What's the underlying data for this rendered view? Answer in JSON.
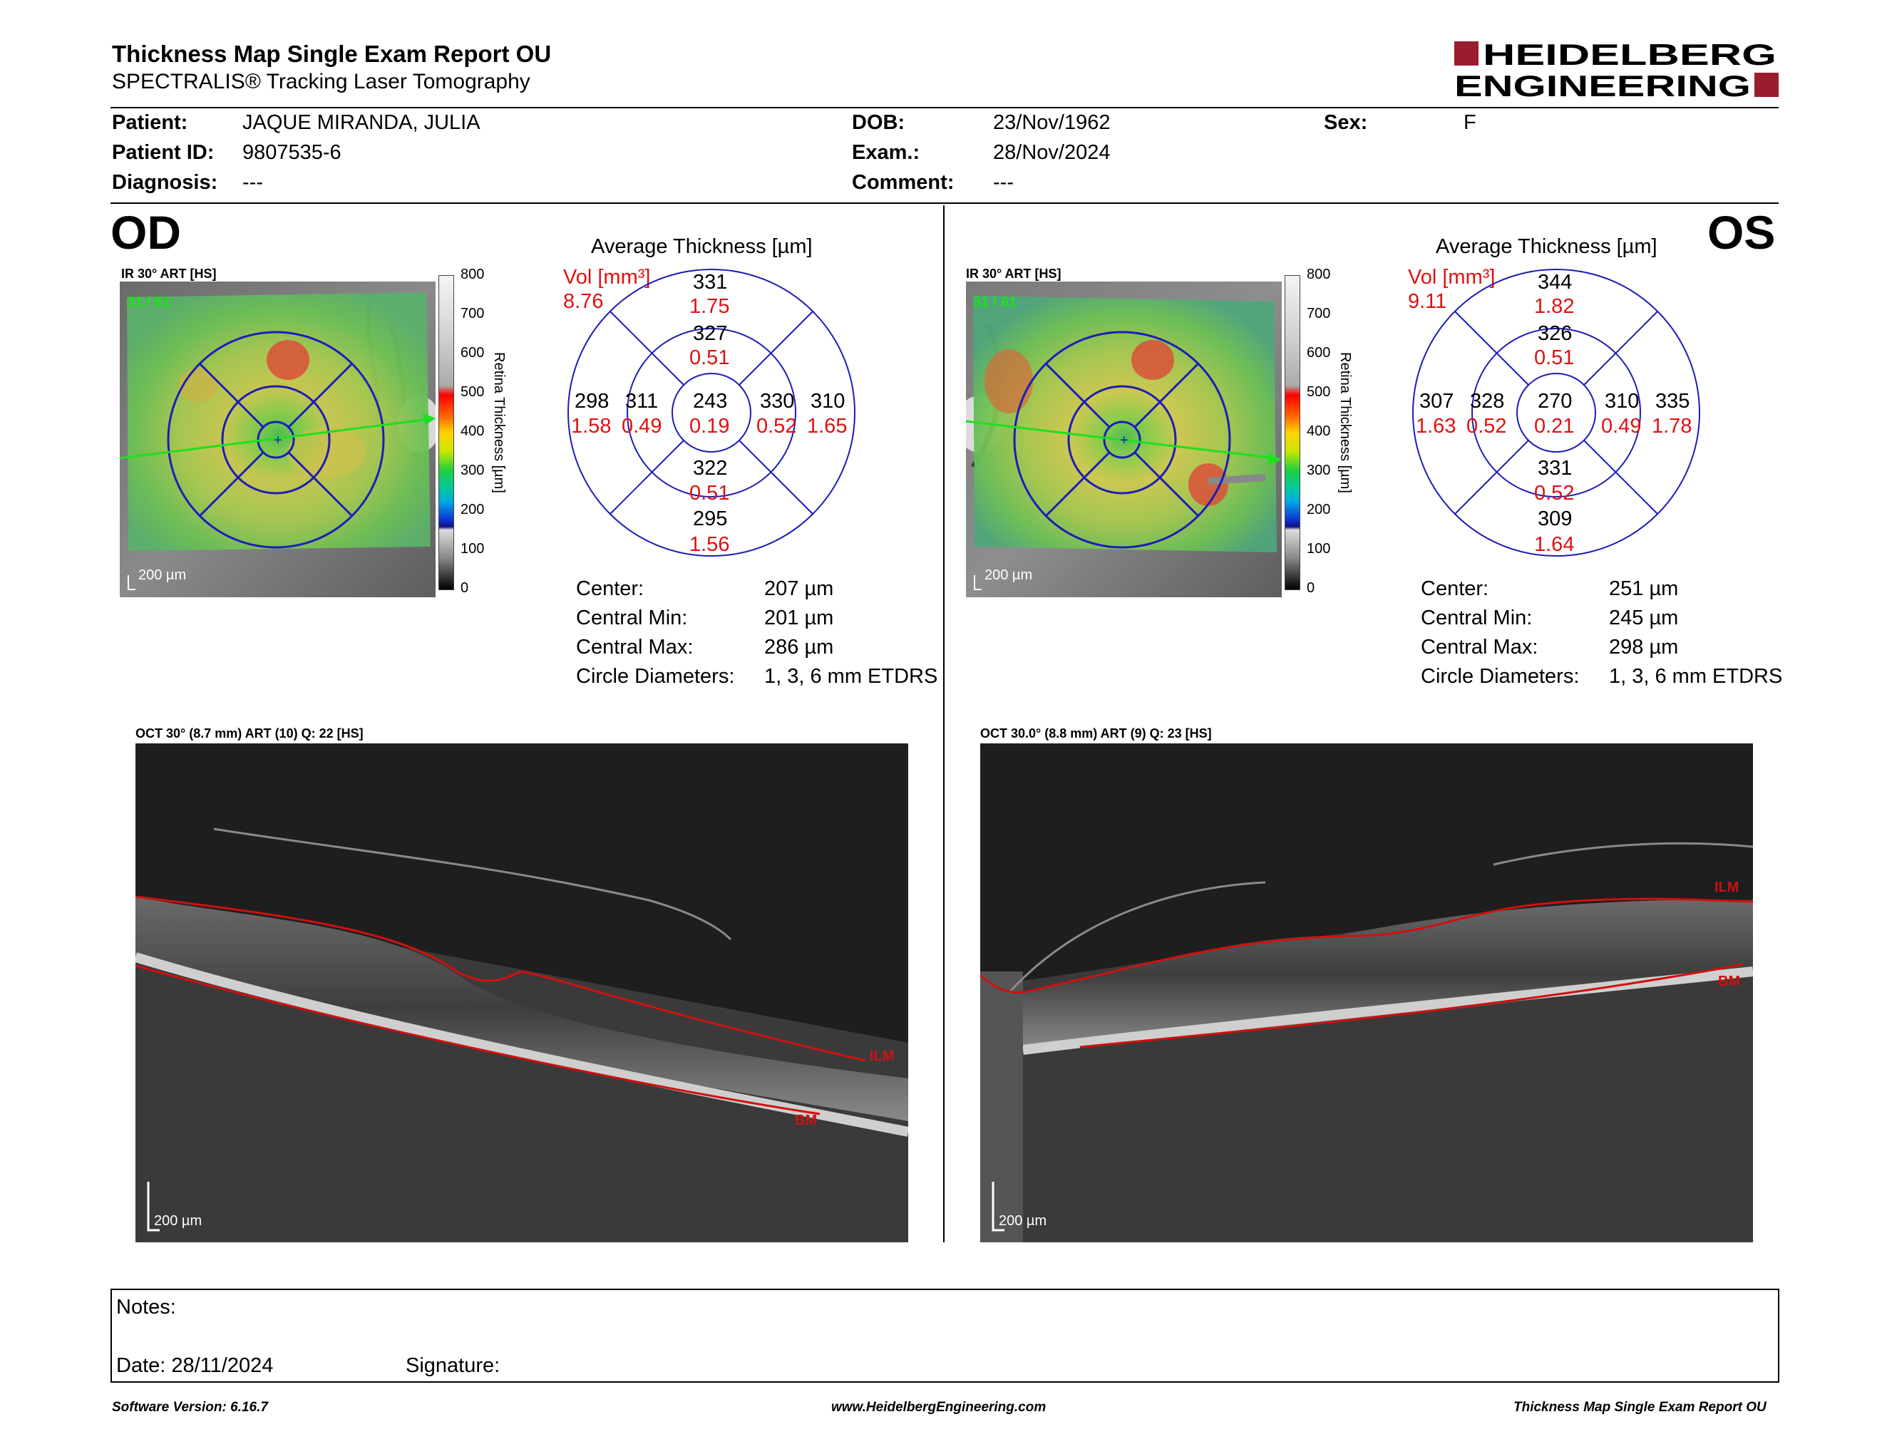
{
  "header": {
    "title": "Thickness Map Single Exam Report OU",
    "subtitle": "SPECTRALIS® Tracking Laser Tomography",
    "logo_line1": "HEIDELBERG",
    "logo_line2": "ENGINEERING"
  },
  "patient": {
    "patient_label": "Patient:",
    "patient_value": "JAQUE MIRANDA, JULIA",
    "id_label": "Patient ID:",
    "id_value": "9807535-6",
    "diag_label": "Diagnosis:",
    "diag_value": "---",
    "dob_label": "DOB:",
    "dob_value": "23/Nov/1962",
    "exam_label": "Exam.:",
    "exam_value": "28/Nov/2024",
    "comment_label": "Comment:",
    "comment_value": "---",
    "sex_label": "Sex:",
    "sex_value": "F"
  },
  "od": {
    "eye": "OD",
    "ir_label": "IR 30° ART [HS]",
    "ir_counter": "31 / 61",
    "ir_scale": "200 µm",
    "avg_title": "Average Thickness [µm]",
    "vol_label": "Vol [mm³]",
    "vol_value": "8.76",
    "grid": {
      "center_t": "243",
      "center_v": "0.19",
      "inner_sup_t": "327",
      "inner_sup_v": "0.51",
      "inner_inf_t": "322",
      "inner_inf_v": "0.51",
      "inner_left_t": "311",
      "inner_left_v": "0.49",
      "inner_right_t": "330",
      "inner_right_v": "0.52",
      "outer_sup_t": "331",
      "outer_sup_v": "1.75",
      "outer_inf_t": "295",
      "outer_inf_v": "1.56",
      "outer_left_t": "298",
      "outer_left_v": "1.58",
      "outer_right_t": "310",
      "outer_right_v": "1.65"
    },
    "stats": {
      "center_label": "Center:",
      "center_value": "207 µm",
      "min_label": "Central Min:",
      "min_value": "201 µm",
      "max_label": "Central Max:",
      "max_value": "286 µm",
      "circ_label": "Circle Diameters:",
      "circ_value": "1, 3, 6 mm ETDRS"
    },
    "oct_label": "OCT 30° (8.7 mm) ART (10) Q: 22 [HS]",
    "oct_scale": "200 µm",
    "ilm": "ILM",
    "bm": "BM"
  },
  "os": {
    "eye": "OS",
    "ir_label": "IR 30° ART [HS]",
    "ir_counter": "31 / 61",
    "ir_scale": "200 µm",
    "avg_title": "Average Thickness [µm]",
    "vol_label": "Vol [mm³]",
    "vol_value": "9.11",
    "grid": {
      "center_t": "270",
      "center_v": "0.21",
      "inner_sup_t": "326",
      "inner_sup_v": "0.51",
      "inner_inf_t": "331",
      "inner_inf_v": "0.52",
      "inner_left_t": "328",
      "inner_left_v": "0.52",
      "inner_right_t": "310",
      "inner_right_v": "0.49",
      "outer_sup_t": "344",
      "outer_sup_v": "1.82",
      "outer_inf_t": "309",
      "outer_inf_v": "1.64",
      "outer_left_t": "307",
      "outer_left_v": "1.63",
      "outer_right_t": "335",
      "outer_right_v": "1.78"
    },
    "stats": {
      "center_label": "Center:",
      "center_value": "251 µm",
      "min_label": "Central Min:",
      "min_value": "245 µm",
      "max_label": "Central Max:",
      "max_value": "298 µm",
      "circ_label": "Circle Diameters:",
      "circ_value": "1, 3, 6 mm ETDRS"
    },
    "oct_label": "OCT 30.0° (8.8 mm) ART (9) Q: 23 [HS]",
    "oct_scale": "200 µm",
    "ilm": "ILM",
    "bm": "BM"
  },
  "colorbar": {
    "title": "Retina Thickness [µm]",
    "ticks": [
      "800",
      "700",
      "600",
      "500",
      "400",
      "300",
      "200",
      "100",
      "0"
    ]
  },
  "notes": {
    "notes_label": "Notes:",
    "date_label": "Date: 28/11/2024",
    "signature_label": "Signature:"
  },
  "footer": {
    "version": "Software Version: 6.16.7",
    "website": "www.HeidelbergEngineering.com",
    "report": "Thickness Map Single Exam Report OU"
  },
  "colors": {
    "accent_red": "#9b1c2e",
    "grid_blue": "#1d1db8",
    "value_red": "#e01010",
    "layer_red": "#d01010"
  }
}
